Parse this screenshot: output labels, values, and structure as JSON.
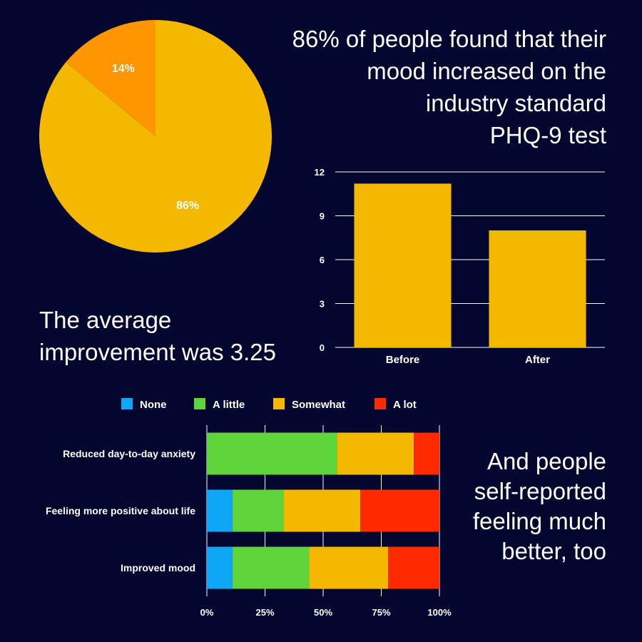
{
  "headline": "86% of people found that their\nmood increased on the\nindustry standard\nPHQ-9 test",
  "average_text": "The average\nimprovement was 3.25",
  "self_report_text": "And people\nself-reported\nfeeling much\nbetter, too",
  "colors": {
    "background": "#03062e",
    "pie_major": "#f5b800",
    "pie_minor": "#ff9500",
    "bar": "#f5b800",
    "none": "#0fa6f5",
    "a_little": "#5ed43a",
    "somewhat": "#f5b800",
    "a_lot": "#ff2a00"
  },
  "chart_data": [
    {
      "type": "pie",
      "slices": [
        {
          "label": "86%",
          "value": 86
        },
        {
          "label": "14%",
          "value": 14
        }
      ]
    },
    {
      "type": "bar",
      "categories": [
        "Before",
        "After"
      ],
      "values": [
        11.2,
        8.0
      ],
      "ylim": [
        0,
        12
      ],
      "yticks": [
        "0",
        "3",
        "6",
        "9",
        "12"
      ],
      "grid": true
    },
    {
      "type": "bar",
      "orientation": "horizontal",
      "stacked": true,
      "categories": [
        "Reduced day-to-day anxiety",
        "Feeling more positive about life",
        "Improved mood"
      ],
      "series": [
        {
          "name": "None",
          "values": [
            0,
            11,
            11
          ]
        },
        {
          "name": "A little",
          "values": [
            56,
            22,
            33
          ]
        },
        {
          "name": "Somewhat",
          "values": [
            33,
            33,
            34
          ]
        },
        {
          "name": "A lot",
          "values": [
            11,
            34,
            22
          ]
        }
      ],
      "xlim": [
        0,
        100
      ],
      "xticks": [
        "0%",
        "25%",
        "50%",
        "75%",
        "100%"
      ],
      "legend": "top",
      "grid": true
    }
  ]
}
